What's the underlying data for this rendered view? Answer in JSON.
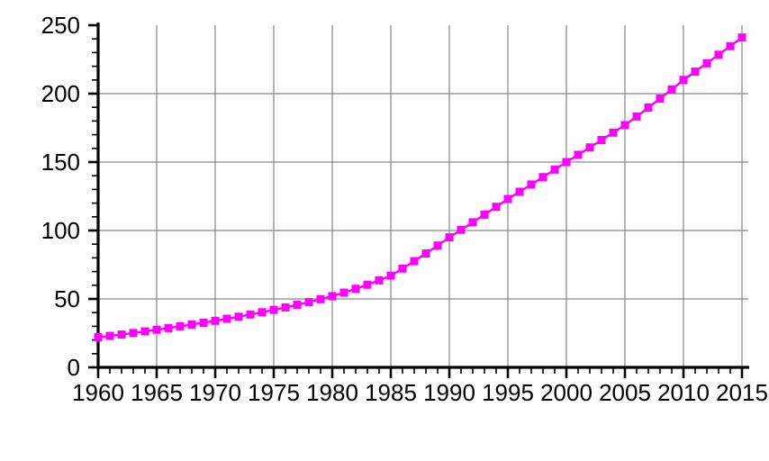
{
  "chart_data": {
    "type": "line",
    "title": "",
    "xlabel": "",
    "ylabel": "",
    "x": [
      1960,
      1961,
      1962,
      1963,
      1964,
      1965,
      1966,
      1967,
      1968,
      1969,
      1970,
      1971,
      1972,
      1973,
      1974,
      1975,
      1976,
      1977,
      1978,
      1979,
      1980,
      1981,
      1982,
      1983,
      1984,
      1985,
      1986,
      1987,
      1988,
      1989,
      1990,
      1991,
      1992,
      1993,
      1994,
      1995,
      1996,
      1997,
      1998,
      1999,
      2000,
      2001,
      2002,
      2003,
      2004,
      2005,
      2006,
      2007,
      2008,
      2009,
      2010,
      2011,
      2012,
      2013,
      2014,
      2015
    ],
    "series": [
      {
        "name": "value",
        "marker": "square",
        "values": [
          22,
          23,
          24,
          25.1,
          26.3,
          27.5,
          28.7,
          30,
          31.3,
          32.6,
          34,
          35.5,
          37,
          38.6,
          40.3,
          42,
          43.8,
          45.7,
          47.7,
          49.8,
          52,
          54.6,
          57.4,
          60.4,
          63.6,
          67,
          72.2,
          77.6,
          83.2,
          89,
          95,
          100.5,
          106,
          111.6,
          117.3,
          123,
          128.3,
          133.6,
          139,
          144.5,
          150,
          155.3,
          160.7,
          166.1,
          171.5,
          177,
          183.3,
          189.8,
          196.4,
          203.1,
          210,
          216.1,
          222.2,
          228.4,
          234.7,
          241
        ]
      }
    ],
    "xlim": [
      1960,
      2015
    ],
    "ylim": [
      0,
      250
    ],
    "x_major_ticks": [
      1960,
      1965,
      1970,
      1975,
      1980,
      1985,
      1990,
      1995,
      2000,
      2005,
      2010,
      2015
    ],
    "x_tick_labels": [
      "1960",
      "1965",
      "1970",
      "1975",
      "1980",
      "1985",
      "1990",
      "1995",
      "2000",
      "2005",
      "2010",
      "2015"
    ],
    "x_minor_step": 1,
    "y_major_ticks": [
      0,
      50,
      100,
      150,
      200,
      250
    ],
    "y_tick_labels": [
      "0",
      "50",
      "100",
      "150",
      "200",
      "250"
    ],
    "y_minor_step": 10,
    "grid": "on",
    "grid_lines_y": [
      50,
      100,
      150,
      200
    ],
    "grid_lines_x": [
      1965,
      1970,
      1975,
      1980,
      1985,
      1990,
      1995,
      2000,
      2005,
      2010,
      2015
    ],
    "legend": "none",
    "colors": {
      "series": "#ff00ff",
      "grid": "#878787",
      "axis": "#000000",
      "tick_label": "#000000",
      "background": "#ffffff"
    }
  }
}
